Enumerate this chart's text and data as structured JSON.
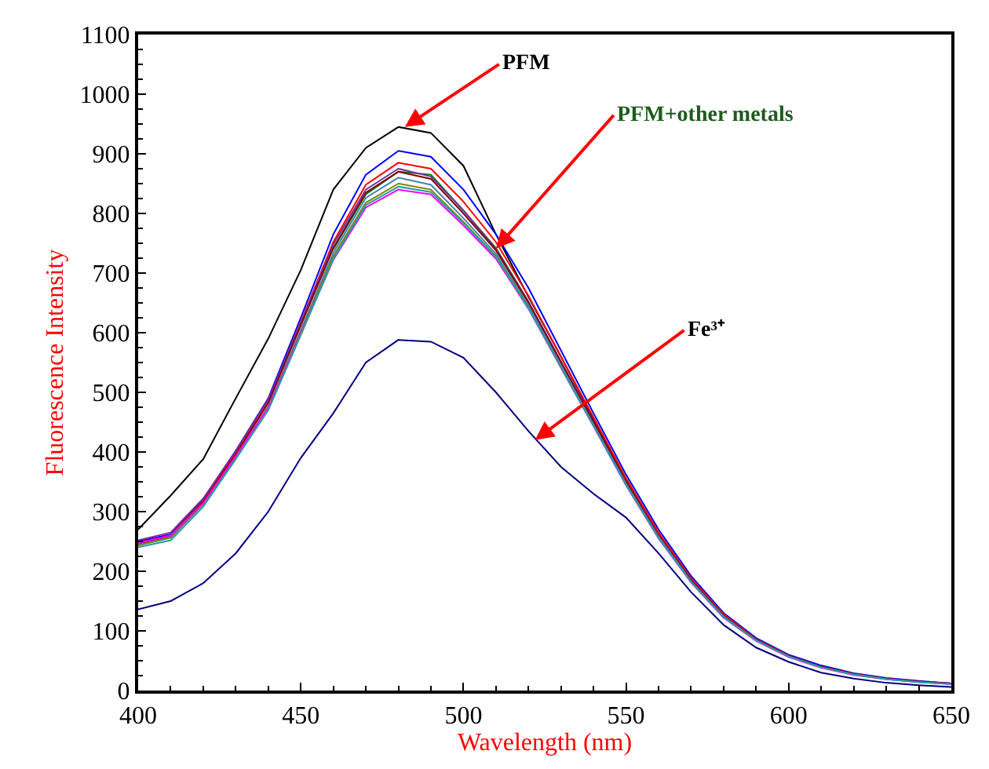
{
  "chart_data": {
    "type": "line",
    "xlabel": "Wavelength (nm)",
    "ylabel": "Fluorescence Intensity",
    "x": [
      400,
      410,
      420,
      430,
      440,
      450,
      460,
      470,
      480,
      490,
      500,
      510,
      520,
      530,
      540,
      550,
      560,
      570,
      580,
      590,
      600,
      610,
      620,
      630,
      640,
      650
    ],
    "xlim": [
      400,
      650
    ],
    "xticks": [
      400,
      450,
      500,
      550,
      600,
      650
    ],
    "ylim": [
      0,
      1100
    ],
    "yticks": [
      0,
      100,
      200,
      300,
      400,
      500,
      600,
      700,
      800,
      900,
      1000,
      1100
    ],
    "marker": "none",
    "line_style": "solid",
    "series": [
      {
        "color": "#000000",
        "values": [
          270,
          327,
          388,
          490,
          590,
          705,
          840,
          910,
          945,
          935,
          880,
          765,
          660,
          560,
          455,
          355,
          262,
          185,
          125,
          85,
          58,
          40,
          28,
          20,
          15,
          12
        ]
      },
      {
        "color": "#0000ff",
        "values": [
          250,
          262,
          320,
          402,
          490,
          625,
          765,
          865,
          905,
          895,
          840,
          765,
          675,
          570,
          465,
          362,
          270,
          192,
          130,
          88,
          60,
          42,
          29,
          21,
          16,
          12
        ]
      },
      {
        "color": "#ff0000",
        "values": [
          248,
          260,
          318,
          400,
          486,
          618,
          752,
          848,
          885,
          875,
          820,
          752,
          662,
          560,
          458,
          356,
          265,
          188,
          128,
          86,
          59,
          null,
          null,
          null,
          null,
          null
        ]
      },
      {
        "color": "#008000",
        "values": [
          null,
          null,
          null,
          null,
          null,
          null,
          740,
          832,
          870,
          865,
          805,
          742,
          652,
          null,
          null,
          null,
          null,
          null,
          null,
          null,
          null,
          null,
          null,
          null,
          null,
          null
        ]
      },
      {
        "color": "#7030a0",
        "values": [
          252,
          265,
          322,
          402,
          488,
          616,
          748,
          840,
          875,
          862,
          805,
          740,
          652,
          552,
          451,
          350,
          260,
          185,
          125,
          85,
          58,
          40,
          28,
          20,
          15,
          12
        ]
      },
      {
        "color": "#800000",
        "values": [
          246,
          259,
          316,
          396,
          482,
          612,
          742,
          835,
          870,
          858,
          800,
          738,
          650,
          550,
          450,
          350,
          260,
          185,
          125,
          85,
          58,
          40,
          28,
          20,
          15,
          12
        ]
      },
      {
        "color": "#4682b4",
        "values": [
          243,
          256,
          312,
          392,
          476,
          604,
          734,
          826,
          860,
          848,
          792,
          732,
          645,
          545,
          446,
          347,
          258,
          183,
          124,
          84,
          57,
          39,
          27,
          19,
          14,
          11
        ]
      },
      {
        "color": "#808000",
        "values": [
          244,
          257,
          313,
          392,
          475,
          600,
          728,
          818,
          850,
          840,
          786,
          728,
          642,
          null,
          null,
          null,
          null,
          null,
          null,
          null,
          null,
          null,
          null,
          null,
          null,
          null
        ]
      },
      {
        "color": "#ff00ff",
        "values": [
          247,
          260,
          314,
          393,
          474,
          598,
          722,
          810,
          840,
          832,
          780,
          724,
          640,
          541,
          443,
          344,
          255,
          181,
          122,
          83,
          56,
          38,
          26,
          19,
          14,
          11
        ]
      },
      {
        "color": "#20a0a0",
        "values": [
          240,
          252,
          308,
          388,
          470,
          596,
          724,
          814,
          845,
          836,
          784,
          727,
          641,
          542,
          444,
          345,
          256,
          182,
          123,
          84,
          57,
          39,
          27,
          19,
          14,
          11
        ]
      },
      {
        "color": "#000080",
        "values": [
          136,
          150,
          180,
          230,
          300,
          390,
          465,
          550,
          588,
          585,
          558,
          500,
          435,
          375,
          330,
          290,
          230,
          165,
          110,
          72,
          48,
          30,
          20,
          13,
          9,
          6
        ]
      }
    ],
    "annotations": [
      {
        "text": "PFM",
        "x": 482,
        "y": 945
      },
      {
        "text": "PFM+other metals",
        "x": 510,
        "y": 741
      },
      {
        "text": "Fe³⁺",
        "x": 522,
        "y": 420
      }
    ]
  }
}
